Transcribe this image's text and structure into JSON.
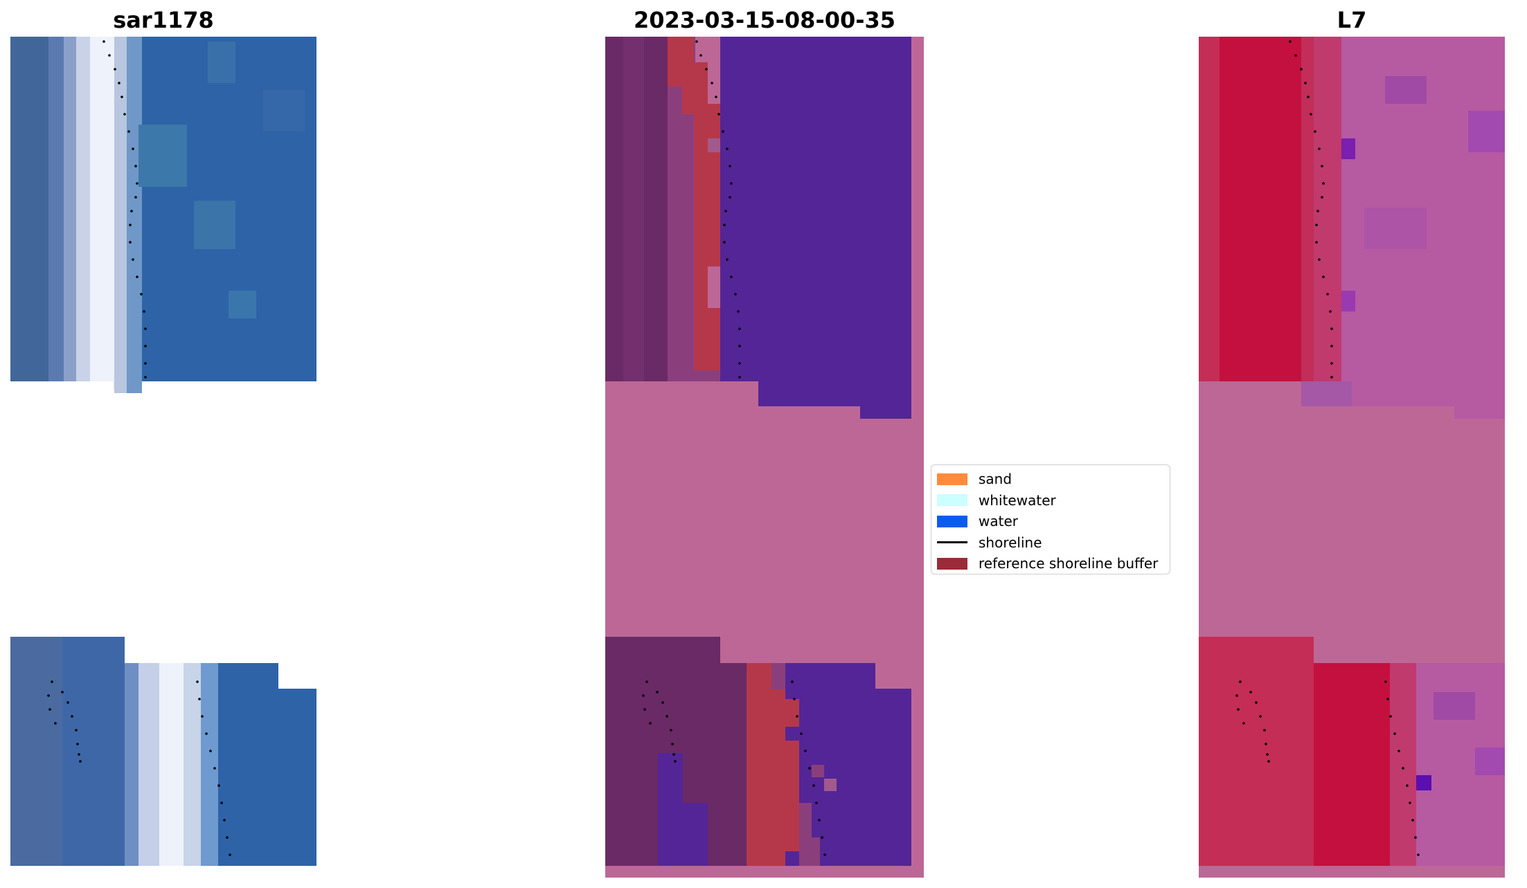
{
  "titles": {
    "left": "sar1178",
    "middle": "2023-03-15-08-00-35",
    "right": "L7"
  },
  "legend": {
    "items": [
      {
        "label": "sand",
        "kind": "patch",
        "color": "#ff8c3d"
      },
      {
        "label": "whitewater",
        "kind": "patch",
        "color": "#ccffff"
      },
      {
        "label": "water",
        "kind": "patch",
        "color": "#0a5cf0"
      },
      {
        "label": "shoreline",
        "kind": "line",
        "color": "#000000"
      },
      {
        "label": "reference shoreline buffer",
        "kind": "patch",
        "color": "#9c2b3a"
      }
    ]
  },
  "colors": {
    "rgb_water": "#2e63a8",
    "rgb_whitewater": "#e8eef8",
    "class_no_data": "#bd6797",
    "class_water": "#542596",
    "class_land": "#6a2a66",
    "class_buffer": "#b5384a",
    "index_land": "#c4103f",
    "index_water": "#b65aa2",
    "index_no_data": "#bd6797",
    "shoreline": "#000000"
  }
}
